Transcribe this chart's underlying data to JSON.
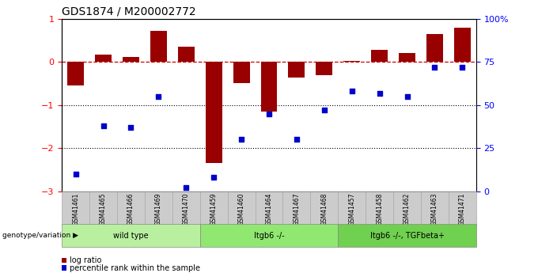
{
  "title": "GDS1874 / M200002772",
  "samples": [
    "GSM41461",
    "GSM41465",
    "GSM41466",
    "GSM41469",
    "GSM41470",
    "GSM41459",
    "GSM41460",
    "GSM41464",
    "GSM41467",
    "GSM41468",
    "GSM41457",
    "GSM41458",
    "GSM41462",
    "GSM41463",
    "GSM41471"
  ],
  "log_ratio": [
    -0.55,
    0.18,
    0.12,
    0.72,
    0.35,
    -2.35,
    -0.48,
    -1.15,
    -0.35,
    -0.3,
    0.02,
    0.28,
    0.22,
    0.65,
    0.8
  ],
  "pct_rank": [
    10,
    38,
    37,
    55,
    2,
    8,
    30,
    45,
    30,
    47,
    58,
    57,
    55,
    72,
    72
  ],
  "groups": [
    {
      "label": "wild type",
      "start": 0,
      "end": 5,
      "color": "#b8f0a0"
    },
    {
      "label": "Itgb6 -/-",
      "start": 5,
      "end": 10,
      "color": "#90e870"
    },
    {
      "label": "Itgb6 -/-, TGFbeta+",
      "start": 10,
      "end": 15,
      "color": "#70d050"
    }
  ],
  "bar_color": "#990000",
  "dot_color": "#0000cc",
  "ref_line_color": "#cc0000",
  "ylim_left": [
    -3.0,
    1.0
  ],
  "ylim_right": [
    0,
    100
  ],
  "yticks_left": [
    -3,
    -2,
    -1,
    0,
    1
  ],
  "yticks_right": [
    0,
    25,
    50,
    75,
    100
  ],
  "legend_items": [
    {
      "label": "log ratio",
      "color": "#990000"
    },
    {
      "label": "percentile rank within the sample",
      "color": "#0000cc"
    }
  ],
  "genotype_label": "genotype/variation",
  "background_color": "#ffffff"
}
